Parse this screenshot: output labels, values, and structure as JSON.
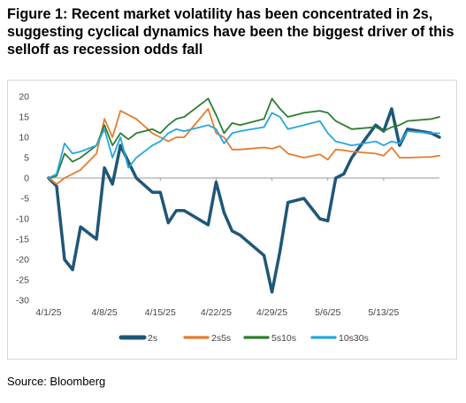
{
  "title": "Figure 1: Recent market volatility has been concentrated in 2s, suggesting cyclical dynamics have been the biggest driver of this selloff as recession odds fall",
  "source": "Source: Bloomberg",
  "chart_data": {
    "type": "line",
    "title": "",
    "xlabel": "",
    "ylabel": "",
    "ylim": [
      -30,
      20
    ],
    "yticks": [
      -30,
      -25,
      -20,
      -15,
      -10,
      -5,
      0,
      5,
      10,
      15,
      20
    ],
    "xlim": [
      "2025-04-01",
      "2025-05-20"
    ],
    "xtick_labels": [
      "4/1/25",
      "4/8/25",
      "4/15/25",
      "4/22/25",
      "4/29/25",
      "5/6/25",
      "5/13/25"
    ],
    "xtick_dates": [
      "2025-04-01",
      "2025-04-08",
      "2025-04-15",
      "2025-04-22",
      "2025-04-29",
      "2025-05-06",
      "2025-05-13"
    ],
    "grid": false,
    "legend_position": "bottom",
    "x": [
      "2025-04-01",
      "2025-04-02",
      "2025-04-03",
      "2025-04-04",
      "2025-04-05",
      "2025-04-07",
      "2025-04-08",
      "2025-04-09",
      "2025-04-10",
      "2025-04-11",
      "2025-04-12",
      "2025-04-14",
      "2025-04-15",
      "2025-04-16",
      "2025-04-17",
      "2025-04-18",
      "2025-04-21",
      "2025-04-22",
      "2025-04-23",
      "2025-04-24",
      "2025-04-25",
      "2025-04-28",
      "2025-04-29",
      "2025-04-30",
      "2025-05-01",
      "2025-05-02",
      "2025-05-03",
      "2025-05-05",
      "2025-05-06",
      "2025-05-07",
      "2025-05-08",
      "2025-05-09",
      "2025-05-12",
      "2025-05-13",
      "2025-05-14",
      "2025-05-15",
      "2025-05-16",
      "2025-05-19",
      "2025-05-20"
    ],
    "series": [
      {
        "name": "2s",
        "color": "#1f5777",
        "width": 3.5,
        "values": [
          0,
          -2,
          -20,
          -22.5,
          -12,
          -15,
          2.5,
          -1.5,
          8,
          4,
          0,
          -3.5,
          -3.5,
          -11,
          -8,
          -8,
          -11.5,
          -1,
          -8.5,
          -13,
          -14,
          -19,
          -28,
          -18,
          -6,
          -5.5,
          -5,
          -10,
          -10.5,
          0,
          1,
          5,
          13,
          11.5,
          17,
          8,
          12,
          11,
          10
        ]
      },
      {
        "name": "2s5s",
        "color": "#e57c2e",
        "width": 1.8,
        "values": [
          0,
          -1.5,
          0,
          1,
          2,
          6,
          14.5,
          10,
          16.5,
          15.5,
          14.5,
          11,
          10,
          9,
          10,
          10,
          17,
          11,
          10,
          7,
          7,
          7.5,
          7.2,
          7.8,
          6,
          5.5,
          5,
          5.8,
          4.5,
          7,
          6.8,
          6.5,
          6,
          5.5,
          7.5,
          5,
          5,
          5.2,
          5.5
        ]
      },
      {
        "name": "5s10s",
        "color": "#2e7d32",
        "width": 1.8,
        "values": [
          0,
          0.5,
          6,
          4,
          5,
          8,
          13,
          8,
          11,
          9.5,
          11,
          12,
          11,
          13,
          14.5,
          15,
          19.5,
          15.5,
          11,
          13.5,
          13,
          14.5,
          19.5,
          17,
          15,
          15.5,
          16,
          16.5,
          16,
          14,
          13,
          12,
          12.5,
          11.5,
          12.5,
          13,
          14,
          14.5,
          15
        ]
      },
      {
        "name": "10s30s",
        "color": "#26a7de",
        "width": 1.8,
        "values": [
          0,
          1,
          8.5,
          6,
          6.5,
          8,
          12,
          5,
          10,
          2.5,
          5,
          8,
          9,
          11,
          12,
          11.5,
          13,
          12,
          8.5,
          11,
          11.5,
          12.5,
          16,
          15,
          12,
          12.5,
          13,
          14,
          11,
          9,
          8.5,
          8,
          9,
          8,
          9,
          8.5,
          11.5,
          11,
          11
        ]
      }
    ]
  }
}
